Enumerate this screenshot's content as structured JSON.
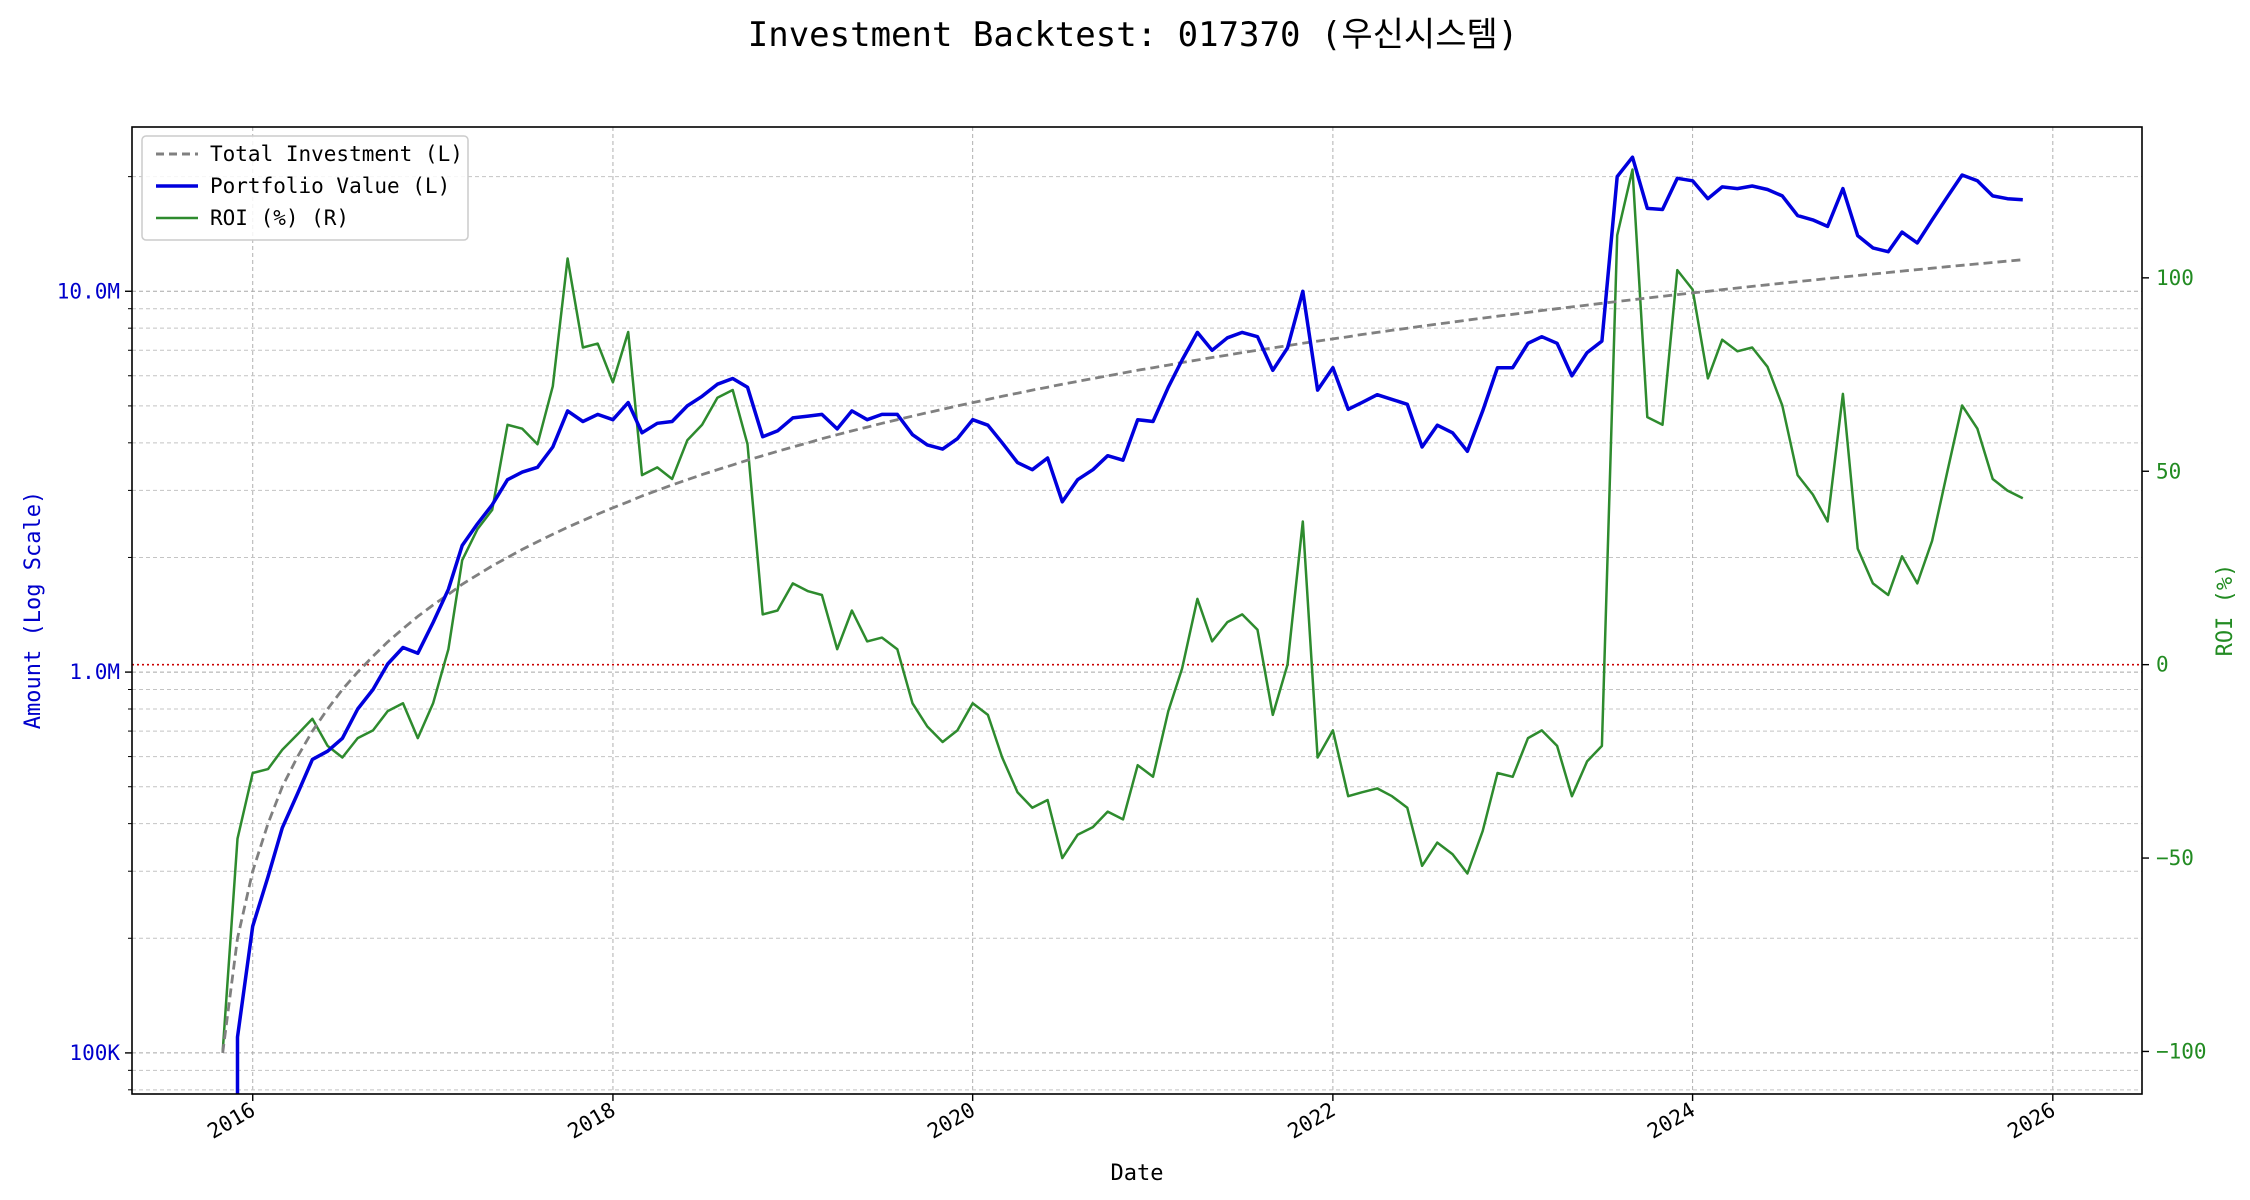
{
  "chart_data": {
    "type": "line",
    "title": "Investment Backtest: 017370 (우신시스템)",
    "xlabel": "Date",
    "ylabel_left": "Amount (Log Scale)",
    "ylabel_right": "ROI (%)",
    "y_left_scale": "log",
    "y_left_range": [
      78000,
      27000000
    ],
    "y_right_range": [
      -111,
      139
    ],
    "x_range": [
      "2015-05-01",
      "2026-07-01"
    ],
    "x_ticks": [
      {
        "date": "2016-01-01",
        "label": "2016"
      },
      {
        "date": "2018-01-01",
        "label": "2018"
      },
      {
        "date": "2020-01-01",
        "label": "2020"
      },
      {
        "date": "2022-01-01",
        "label": "2022"
      },
      {
        "date": "2024-01-01",
        "label": "2024"
      },
      {
        "date": "2026-01-01",
        "label": "2026"
      }
    ],
    "y_left_ticks": [
      {
        "value": 100000,
        "label": "100K"
      },
      {
        "value": 1000000,
        "label": "1.0M"
      },
      {
        "value": 10000000,
        "label": "10.0M"
      }
    ],
    "y_right_ticks": [
      {
        "value": -100,
        "label": "−100"
      },
      {
        "value": -50,
        "label": "−50"
      },
      {
        "value": 0,
        "label": "0"
      },
      {
        "value": 50,
        "label": "50"
      },
      {
        "value": 100,
        "label": "100"
      }
    ],
    "grid": true,
    "legend_position": "top-left",
    "reference_line": {
      "axis": "right",
      "value": 0,
      "color": "#cc0000",
      "style": "dotted"
    },
    "dates": [
      "2015-11-01",
      "2015-12-01",
      "2016-01-01",
      "2016-02-01",
      "2016-03-01",
      "2016-04-01",
      "2016-05-01",
      "2016-06-01",
      "2016-07-01",
      "2016-08-01",
      "2016-09-01",
      "2016-10-01",
      "2016-11-01",
      "2016-12-01",
      "2017-01-01",
      "2017-02-01",
      "2017-03-01",
      "2017-04-01",
      "2017-05-01",
      "2017-06-01",
      "2017-07-01",
      "2017-08-01",
      "2017-09-01",
      "2017-10-01",
      "2017-11-01",
      "2017-12-01",
      "2018-01-01",
      "2018-02-01",
      "2018-03-01",
      "2018-04-01",
      "2018-05-01",
      "2018-06-01",
      "2018-07-01",
      "2018-08-01",
      "2018-09-01",
      "2018-10-01",
      "2018-11-01",
      "2018-12-01",
      "2019-01-01",
      "2019-02-01",
      "2019-03-01",
      "2019-04-01",
      "2019-05-01",
      "2019-06-01",
      "2019-07-01",
      "2019-08-01",
      "2019-09-01",
      "2019-10-01",
      "2019-11-01",
      "2019-12-01",
      "2020-01-01",
      "2020-02-01",
      "2020-03-01",
      "2020-04-01",
      "2020-05-01",
      "2020-06-01",
      "2020-07-01",
      "2020-08-01",
      "2020-09-01",
      "2020-10-01",
      "2020-11-01",
      "2020-12-01",
      "2021-01-01",
      "2021-02-01",
      "2021-03-01",
      "2021-04-01",
      "2021-05-01",
      "2021-06-01",
      "2021-07-01",
      "2021-08-01",
      "2021-09-01",
      "2021-10-01",
      "2021-11-01",
      "2021-12-01",
      "2022-01-01",
      "2022-02-01",
      "2022-03-01",
      "2022-04-01",
      "2022-05-01",
      "2022-06-01",
      "2022-07-01",
      "2022-08-01",
      "2022-09-01",
      "2022-10-01",
      "2022-11-01",
      "2022-12-01",
      "2023-01-01",
      "2023-02-01",
      "2023-03-01",
      "2023-04-01",
      "2023-05-01",
      "2023-06-01",
      "2023-07-01",
      "2023-08-01",
      "2023-09-01",
      "2023-10-01",
      "2023-11-01",
      "2023-12-01",
      "2024-01-01",
      "2024-02-01",
      "2024-03-01",
      "2024-04-01",
      "2024-05-01",
      "2024-06-01",
      "2024-07-01",
      "2024-08-01",
      "2024-09-01",
      "2024-10-01",
      "2024-11-01",
      "2024-12-01",
      "2025-01-01",
      "2025-02-01",
      "2025-03-01",
      "2025-04-01",
      "2025-05-01",
      "2025-06-01",
      "2025-07-01",
      "2025-08-01",
      "2025-09-01",
      "2025-10-01",
      "2025-11-01"
    ],
    "series": [
      {
        "name": "Total Investment (L)",
        "axis": "left",
        "color": "#808080",
        "style": "dashed",
        "values": [
          100000,
          200000,
          300000,
          400000,
          500000,
          600000,
          700000,
          800000,
          900000,
          1000000,
          1100000,
          1200000,
          1300000,
          1400000,
          1500000,
          1600000,
          1700000,
          1800000,
          1900000,
          2000000,
          2100000,
          2200000,
          2300000,
          2400000,
          2500000,
          2600000,
          2700000,
          2800000,
          2900000,
          3000000,
          3100000,
          3200000,
          3300000,
          3400000,
          3500000,
          3600000,
          3700000,
          3800000,
          3900000,
          4000000,
          4100000,
          4200000,
          4300000,
          4400000,
          4500000,
          4600000,
          4700000,
          4800000,
          4900000,
          5000000,
          5100000,
          5200000,
          5300000,
          5400000,
          5500000,
          5600000,
          5700000,
          5800000,
          5900000,
          6000000,
          6100000,
          6200000,
          6300000,
          6400000,
          6500000,
          6600000,
          6700000,
          6800000,
          6900000,
          7000000,
          7100000,
          7200000,
          7300000,
          7400000,
          7500000,
          7600000,
          7700000,
          7800000,
          7900000,
          8000000,
          8100000,
          8200000,
          8300000,
          8400000,
          8500000,
          8600000,
          8700000,
          8800000,
          8900000,
          9000000,
          9100000,
          9200000,
          9300000,
          9400000,
          9500000,
          9600000,
          9700000,
          9800000,
          9900000,
          10000000,
          10100000,
          10200000,
          10300000,
          10400000,
          10500000,
          10600000,
          10700000,
          10800000,
          10900000,
          11000000,
          11100000,
          11200000,
          11300000,
          11400000,
          11500000,
          11600000,
          11700000,
          11800000,
          11900000,
          12000000,
          12100000
        ]
      },
      {
        "name": "Portfolio Value (L)",
        "axis": "left",
        "color": "#0000dd",
        "style": "solid",
        "values": [
          null,
          110000,
          215000,
          290000,
          390000,
          480000,
          590000,
          620000,
          670000,
          800000,
          900000,
          1050000,
          1160000,
          1120000,
          1350000,
          1650000,
          2150000,
          2450000,
          2750000,
          3200000,
          3350000,
          3450000,
          3900000,
          4850000,
          4550000,
          4750000,
          4600000,
          5100000,
          4250000,
          4500000,
          4550000,
          5000000,
          5300000,
          5700000,
          5900000,
          5600000,
          4150000,
          4300000,
          4650000,
          4700000,
          4750000,
          4350000,
          4850000,
          4600000,
          4750000,
          4750000,
          4200000,
          3950000,
          3850000,
          4100000,
          4600000,
          4450000,
          4000000,
          3550000,
          3400000,
          3650000,
          2800000,
          3200000,
          3400000,
          3700000,
          3600000,
          4600000,
          4550000,
          5600000,
          6600000,
          7800000,
          7000000,
          7550000,
          7800000,
          7600000,
          6200000,
          7100000,
          10000000,
          5500000,
          6300000,
          4900000,
          5100000,
          5350000,
          5200000,
          5050000,
          3900000,
          4450000,
          4250000,
          3800000,
          4850000,
          6300000,
          6300000,
          7300000,
          7600000,
          7300000,
          6000000,
          6900000,
          7400000,
          20000000,
          22500000,
          16500000,
          16400000,
          19800000,
          19500000,
          17500000,
          18800000,
          18600000,
          18900000,
          18500000,
          17800000,
          15800000,
          15400000,
          14800000,
          18600000,
          14000000,
          13000000,
          12700000,
          14300000,
          13400000,
          15400000,
          17700000,
          20200000,
          19500000,
          17800000,
          17500000,
          17400000
        ]
      },
      {
        "name": "ROI (%) (R)",
        "axis": "right",
        "color": "#2e8b2e",
        "style": "solid",
        "values": [
          -100,
          -45,
          -28,
          -27,
          -22,
          -18,
          -14,
          -21,
          -24,
          -19,
          -17,
          -12,
          -10,
          -19,
          -10,
          4,
          27,
          35,
          40,
          62,
          61,
          57,
          72,
          105,
          82,
          83,
          73,
          86,
          49,
          51,
          48,
          58,
          62,
          69,
          71,
          57,
          13,
          14,
          21,
          19,
          18,
          4,
          14,
          6,
          7,
          4,
          -10,
          -16,
          -20,
          -17,
          -10,
          -13,
          -24,
          -33,
          -37,
          -35,
          -50,
          -44,
          -42,
          -38,
          -40,
          -26,
          -29,
          -12,
          -1,
          17,
          6,
          11,
          13,
          9,
          -13,
          0,
          37,
          -24,
          -17,
          -34,
          -33,
          -32,
          -34,
          -37,
          -52,
          -46,
          -49,
          -54,
          -43,
          -28,
          -29,
          -19,
          -17,
          -21,
          -34,
          -25,
          -21,
          111,
          128,
          64,
          62,
          102,
          97,
          74,
          84,
          81,
          82,
          77,
          67,
          49,
          44,
          37,
          70,
          30,
          21,
          18,
          28,
          21,
          32,
          50,
          67,
          61,
          48,
          45,
          43
        ]
      }
    ]
  }
}
